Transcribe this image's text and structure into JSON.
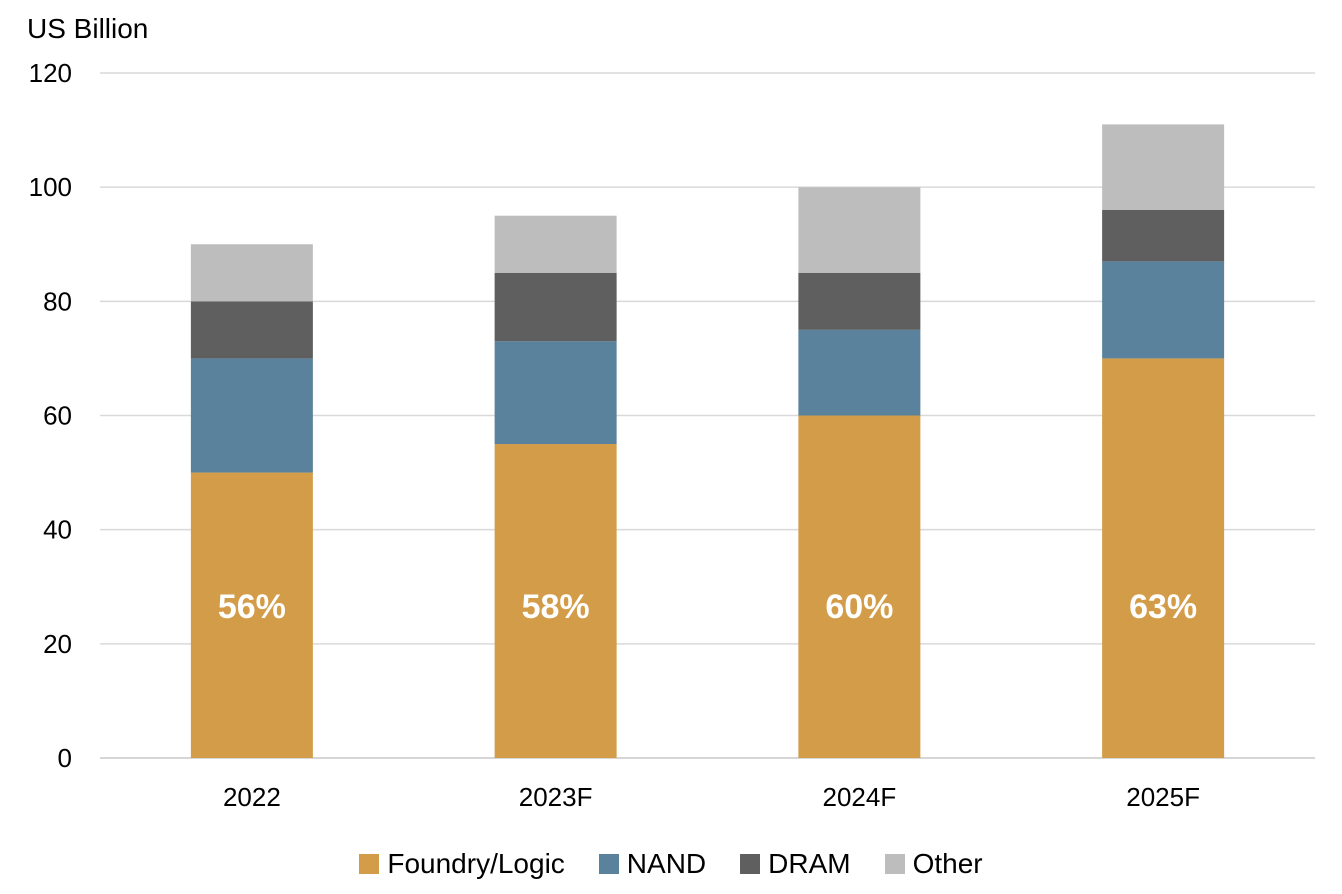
{
  "chart_data": {
    "type": "bar",
    "stacked": true,
    "ylabel": "US Billion",
    "ylim": [
      0,
      120
    ],
    "yticks": [
      0,
      20,
      40,
      60,
      80,
      100,
      120
    ],
    "grid": true,
    "legend_position": "bottom",
    "categories": [
      "2022",
      "2023F",
      "2024F",
      "2025F"
    ],
    "series": [
      {
        "name": "Foundry/Logic",
        "color": "#d39c48",
        "values": [
          50,
          55,
          60,
          70
        ]
      },
      {
        "name": "NAND",
        "color": "#5a829c",
        "values": [
          20,
          18,
          15,
          17
        ]
      },
      {
        "name": "DRAM",
        "color": "#5f5f5f",
        "values": [
          10,
          12,
          10,
          9
        ]
      },
      {
        "name": "Other",
        "color": "#bdbdbd",
        "values": [
          10,
          10,
          15,
          15
        ]
      }
    ],
    "segment_labels": {
      "series": "Foundry/Logic",
      "labels": [
        "56%",
        "58%",
        "60%",
        "63%"
      ]
    }
  }
}
